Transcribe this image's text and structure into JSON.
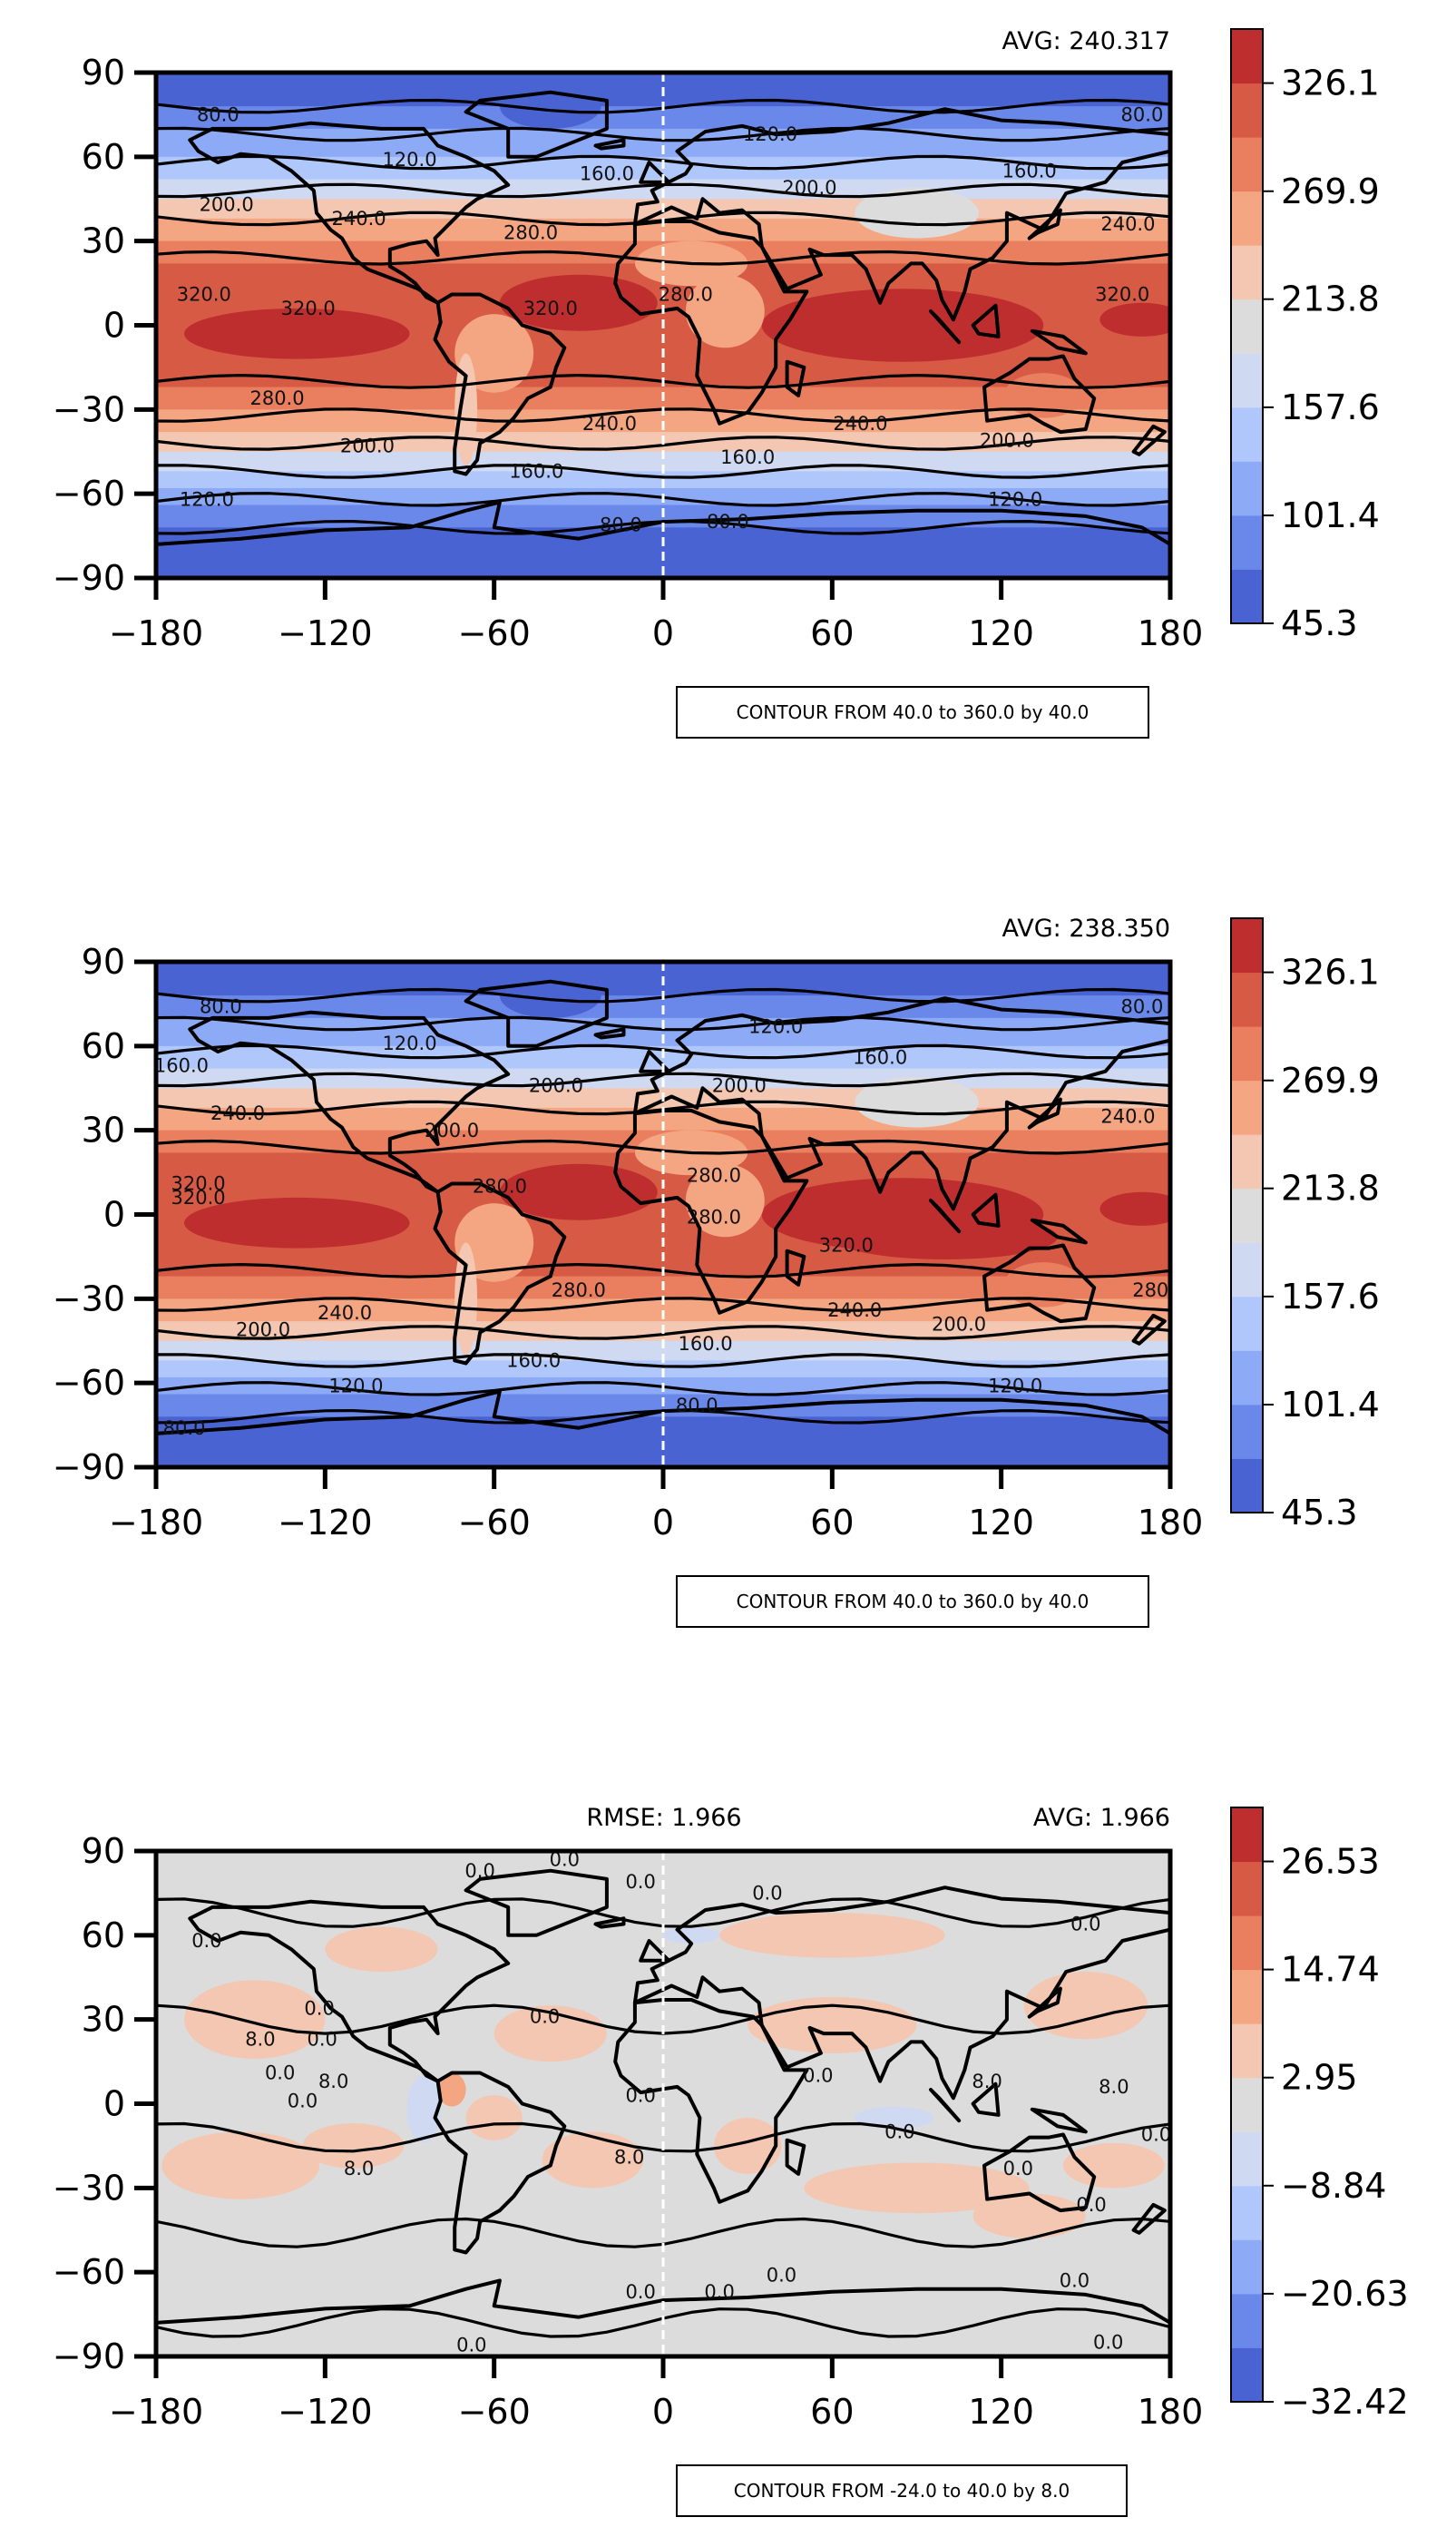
{
  "colors": {
    "bands": [
      "#4a63d2",
      "#6a88ea",
      "#8daaf6",
      "#b0c7fb",
      "#cfdaf2",
      "#dcdcdc",
      "#f3c7b1",
      "#f4a582",
      "#e97f5f",
      "#d75a45",
      "#bf2e2e"
    ],
    "land": "#000000",
    "contour": "#000000"
  },
  "chart_data": [
    {
      "type": "heatmap",
      "avg_text": "AVG: 240.317",
      "xlim": [
        -180,
        180
      ],
      "ylim": [
        -90,
        90
      ],
      "xticks": [
        "−180",
        "−120",
        "−60",
        "0",
        "60",
        "120",
        "180"
      ],
      "yticks": [
        "90",
        "60",
        "30",
        "0",
        "−30",
        "−60",
        "−90"
      ],
      "colorbar": {
        "range": [
          45.3,
          354.2
        ],
        "ticks": [
          "326.1",
          "269.9",
          "213.8",
          "157.6",
          "101.4",
          "45.3"
        ]
      },
      "contour_note": "CONTOUR FROM 40.0 to 360.0 by 40.0",
      "contour_labels": [
        {
          "text": "80.0",
          "lon": -158,
          "lat": 74
        },
        {
          "text": "80.0",
          "lon": 170,
          "lat": 74
        },
        {
          "text": "120.0",
          "lon": -90,
          "lat": 58
        },
        {
          "text": "120.0",
          "lon": 38,
          "lat": 67
        },
        {
          "text": "160.0",
          "lon": -20,
          "lat": 53
        },
        {
          "text": "160.0",
          "lon": 130,
          "lat": 54
        },
        {
          "text": "200.0",
          "lon": -155,
          "lat": 42
        },
        {
          "text": "200.0",
          "lon": 52,
          "lat": 48
        },
        {
          "text": "240.0",
          "lon": -108,
          "lat": 37
        },
        {
          "text": "240.0",
          "lon": 165,
          "lat": 35
        },
        {
          "text": "280.0",
          "lon": -47,
          "lat": 32
        },
        {
          "text": "280.0",
          "lon": 8,
          "lat": 10
        },
        {
          "text": "320.0",
          "lon": -163,
          "lat": 10
        },
        {
          "text": "320.0",
          "lon": -126,
          "lat": 5
        },
        {
          "text": "320.0",
          "lon": -40,
          "lat": 5
        },
        {
          "text": "320.0",
          "lon": 163,
          "lat": 10
        },
        {
          "text": "280.0",
          "lon": -137,
          "lat": -27
        },
        {
          "text": "240.0",
          "lon": -19,
          "lat": -36
        },
        {
          "text": "240.0",
          "lon": 70,
          "lat": -36
        },
        {
          "text": "200.0",
          "lon": -105,
          "lat": -44
        },
        {
          "text": "200.0",
          "lon": 122,
          "lat": -42
        },
        {
          "text": "160.0",
          "lon": -45,
          "lat": -53
        },
        {
          "text": "160.0",
          "lon": 30,
          "lat": -48
        },
        {
          "text": "120.0",
          "lon": -162,
          "lat": -63
        },
        {
          "text": "120.0",
          "lon": 125,
          "lat": -63
        },
        {
          "text": "80.0",
          "lon": -15,
          "lat": -72
        },
        {
          "text": "80.0",
          "lon": 23,
          "lat": -71
        }
      ]
    },
    {
      "type": "heatmap",
      "avg_text": "AVG: 238.350",
      "xlim": [
        -180,
        180
      ],
      "ylim": [
        -90,
        90
      ],
      "xticks": [
        "−180",
        "−120",
        "−60",
        "0",
        "60",
        "120",
        "180"
      ],
      "yticks": [
        "90",
        "60",
        "30",
        "0",
        "−30",
        "−60",
        "−90"
      ],
      "colorbar": {
        "range": [
          45.3,
          354.2
        ],
        "ticks": [
          "326.1",
          "269.9",
          "213.8",
          "157.6",
          "101.4",
          "45.3"
        ]
      },
      "contour_note": "CONTOUR FROM 40.0 to 360.0 by 40.0",
      "contour_labels": [
        {
          "text": "80.0",
          "lon": -157,
          "lat": 73
        },
        {
          "text": "80.0",
          "lon": 170,
          "lat": 73
        },
        {
          "text": "120.0",
          "lon": -90,
          "lat": 60
        },
        {
          "text": "120.0",
          "lon": 40,
          "lat": 66
        },
        {
          "text": "160.0",
          "lon": -171,
          "lat": 52
        },
        {
          "text": "160.0",
          "lon": 77,
          "lat": 55
        },
        {
          "text": "200.0",
          "lon": -38,
          "lat": 45
        },
        {
          "text": "200.0",
          "lon": 27,
          "lat": 45
        },
        {
          "text": "240.0",
          "lon": -151,
          "lat": 35
        },
        {
          "text": "240.0",
          "lon": 165,
          "lat": 34
        },
        {
          "text": "200.0",
          "lon": -75,
          "lat": 29
        },
        {
          "text": "280.0",
          "lon": -58,
          "lat": 9
        },
        {
          "text": "280.0",
          "lon": 18,
          "lat": 13
        },
        {
          "text": "280.0",
          "lon": 18,
          "lat": -2
        },
        {
          "text": "320.0",
          "lon": -165,
          "lat": 10
        },
        {
          "text": "320.0",
          "lon": -165,
          "lat": 5
        },
        {
          "text": "320.0",
          "lon": 65,
          "lat": -12
        },
        {
          "text": "280.0",
          "lon": -30,
          "lat": -28
        },
        {
          "text": "240.0",
          "lon": -113,
          "lat": -36
        },
        {
          "text": "240.0",
          "lon": 68,
          "lat": -35
        },
        {
          "text": "200.0",
          "lon": -142,
          "lat": -42
        },
        {
          "text": "200.0",
          "lon": 105,
          "lat": -40
        },
        {
          "text": "160.0",
          "lon": -46,
          "lat": -53
        },
        {
          "text": "160.0",
          "lon": 15,
          "lat": -47
        },
        {
          "text": "120.0",
          "lon": -109,
          "lat": -62
        },
        {
          "text": "120.0",
          "lon": 125,
          "lat": -62
        },
        {
          "text": "80.0",
          "lon": -170,
          "lat": -77
        },
        {
          "text": "80.0",
          "lon": 12,
          "lat": -69
        },
        {
          "text": "280",
          "lon": 173,
          "lat": -28
        }
      ]
    },
    {
      "type": "heatmap",
      "rmse_text": "RMSE: 1.966",
      "avg_text": "AVG: 1.966",
      "xlim": [
        -180,
        180
      ],
      "ylim": [
        -90,
        90
      ],
      "xticks": [
        "−180",
        "−120",
        "−60",
        "0",
        "60",
        "120",
        "180"
      ],
      "yticks": [
        "90",
        "60",
        "30",
        "0",
        "−30",
        "−60",
        "−90"
      ],
      "colorbar": {
        "range": [
          -32.42,
          32.42
        ],
        "ticks": [
          "26.53",
          "14.74",
          "2.95",
          "−8.84",
          "−20.63",
          "−32.42"
        ]
      },
      "contour_note": "CONTOUR FROM -24.0 to 40.0 by 8.0",
      "contour_labels": [
        {
          "text": "0.0",
          "lon": -162,
          "lat": 57
        },
        {
          "text": "0.0",
          "lon": -65,
          "lat": 82
        },
        {
          "text": "0.0",
          "lon": -35,
          "lat": 86
        },
        {
          "text": "0.0",
          "lon": -8,
          "lat": 78
        },
        {
          "text": "0.0",
          "lon": 37,
          "lat": 74
        },
        {
          "text": "0.0",
          "lon": 150,
          "lat": 63
        },
        {
          "text": "8.0",
          "lon": -143,
          "lat": 22
        },
        {
          "text": "0.0",
          "lon": -122,
          "lat": 33
        },
        {
          "text": "0.0",
          "lon": -121,
          "lat": 22
        },
        {
          "text": "0.0",
          "lon": -136,
          "lat": 10
        },
        {
          "text": "8.0",
          "lon": -117,
          "lat": 7
        },
        {
          "text": "0.0",
          "lon": -128,
          "lat": 0
        },
        {
          "text": "0.0",
          "lon": -42,
          "lat": 30
        },
        {
          "text": "0.0",
          "lon": -8,
          "lat": 2
        },
        {
          "text": "0.0",
          "lon": 55,
          "lat": 9
        },
        {
          "text": "8.0",
          "lon": 115,
          "lat": 7
        },
        {
          "text": "8.0",
          "lon": 160,
          "lat": 5
        },
        {
          "text": "0.0",
          "lon": 84,
          "lat": -11
        },
        {
          "text": "0.0",
          "lon": 175,
          "lat": -12
        },
        {
          "text": "8.0",
          "lon": -108,
          "lat": -24
        },
        {
          "text": "8.0",
          "lon": -12,
          "lat": -20
        },
        {
          "text": "0.0",
          "lon": 126,
          "lat": -24
        },
        {
          "text": "0.0",
          "lon": 152,
          "lat": -37
        },
        {
          "text": "0.0",
          "lon": -8,
          "lat": -68
        },
        {
          "text": "0.0",
          "lon": 20,
          "lat": -68
        },
        {
          "text": "0.0",
          "lon": 42,
          "lat": -62
        },
        {
          "text": "0.0",
          "lon": 146,
          "lat": -64
        },
        {
          "text": "0.0",
          "lon": -68,
          "lat": -87
        },
        {
          "text": "0.0",
          "lon": 158,
          "lat": -86
        }
      ]
    }
  ]
}
